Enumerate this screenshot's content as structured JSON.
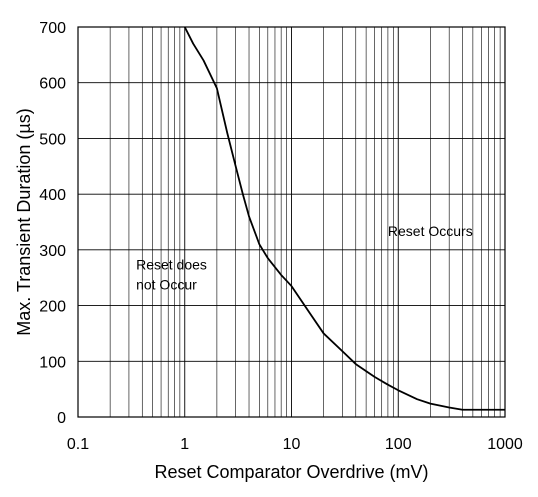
{
  "chart_data": {
    "type": "line",
    "xscale": "log",
    "xlim": [
      0.1,
      1000
    ],
    "ylim": [
      0,
      700
    ],
    "grid": true,
    "xlabel": "Reset Comparator Overdrive (mV)",
    "ylabel": "Max. Transient Duration (µs)",
    "x_ticks": [
      {
        "value": 0.1,
        "label": "0.1"
      },
      {
        "value": 1,
        "label": "1"
      },
      {
        "value": 10,
        "label": "10"
      },
      {
        "value": 100,
        "label": "100"
      },
      {
        "value": 1000,
        "label": "1000"
      }
    ],
    "y_ticks": [
      {
        "value": 0,
        "label": "0"
      },
      {
        "value": 100,
        "label": "100"
      },
      {
        "value": 200,
        "label": "200"
      },
      {
        "value": 300,
        "label": "300"
      },
      {
        "value": 400,
        "label": "400"
      },
      {
        "value": 500,
        "label": "500"
      },
      {
        "value": 600,
        "label": "600"
      },
      {
        "value": 700,
        "label": "700"
      }
    ],
    "series": [
      {
        "color": "#000000",
        "points": [
          {
            "x": 1.0,
            "y": 700
          },
          {
            "x": 1.2,
            "y": 670
          },
          {
            "x": 1.5,
            "y": 640
          },
          {
            "x": 2.0,
            "y": 590
          },
          {
            "x": 2.5,
            "y": 510
          },
          {
            "x": 3.0,
            "y": 450
          },
          {
            "x": 3.5,
            "y": 400
          },
          {
            "x": 4.0,
            "y": 360
          },
          {
            "x": 5.0,
            "y": 310
          },
          {
            "x": 6.0,
            "y": 285
          },
          {
            "x": 8.0,
            "y": 255
          },
          {
            "x": 10,
            "y": 235
          },
          {
            "x": 15,
            "y": 185
          },
          {
            "x": 20,
            "y": 150
          },
          {
            "x": 30,
            "y": 118
          },
          {
            "x": 40,
            "y": 95
          },
          {
            "x": 60,
            "y": 72
          },
          {
            "x": 80,
            "y": 58
          },
          {
            "x": 100,
            "y": 48
          },
          {
            "x": 150,
            "y": 32
          },
          {
            "x": 200,
            "y": 24
          },
          {
            "x": 300,
            "y": 17
          },
          {
            "x": 400,
            "y": 13
          },
          {
            "x": 600,
            "y": 13
          },
          {
            "x": 1000,
            "y": 13
          }
        ]
      }
    ],
    "annotations": [
      {
        "id": "reset-occurs",
        "lines": [
          "Reset Occurs"
        ],
        "x": 80,
        "y": 325
      },
      {
        "id": "reset-does-not-occur",
        "lines": [
          "Reset does",
          "not Occur"
        ],
        "x": 0.35,
        "y": 265
      }
    ]
  }
}
